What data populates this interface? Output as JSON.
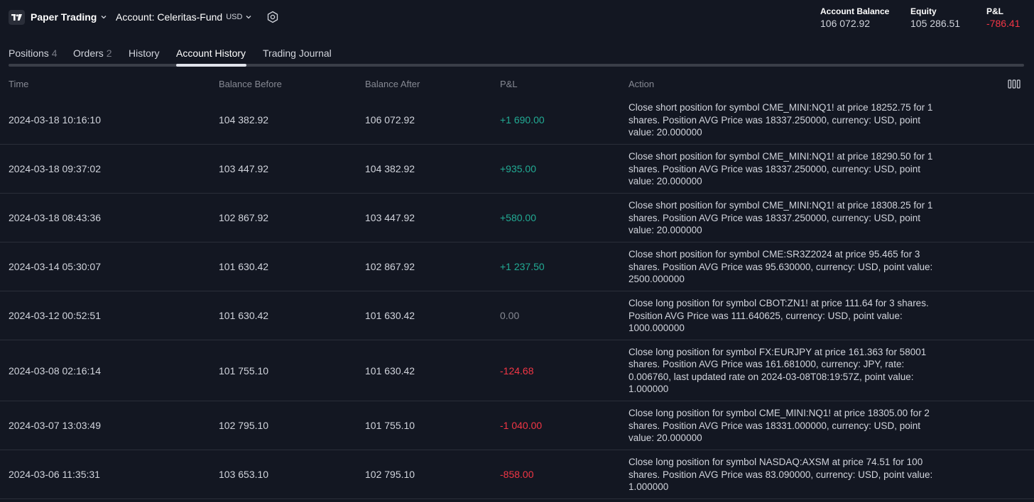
{
  "header": {
    "broker_label": "Paper Trading",
    "account_label": "Account: Celeritas-Fund",
    "account_currency": "USD",
    "stats": {
      "balance_label": "Account Balance",
      "balance_value": "106 072.92",
      "equity_label": "Equity",
      "equity_value": "105 286.51",
      "pnl_label": "P&L",
      "pnl_value": "-786.41"
    }
  },
  "tabs": [
    {
      "label": "Positions",
      "count": "4"
    },
    {
      "label": "Orders",
      "count": "2"
    },
    {
      "label": "History",
      "count": ""
    },
    {
      "label": "Account History",
      "count": ""
    },
    {
      "label": "Trading Journal",
      "count": ""
    }
  ],
  "active_tab": "Account History",
  "table": {
    "columns": [
      "Time",
      "Balance Before",
      "Balance After",
      "P&L",
      "Action"
    ],
    "rows": [
      {
        "time": "2024-03-18 10:16:10",
        "before": "104 382.92",
        "after": "106 072.92",
        "pnl": "+1 690.00",
        "sign": "pos",
        "action": "Close short position for symbol CME_MINI:NQ1! at price 18252.75 for 1 shares. Position AVG Price was 18337.250000, currency: USD, point value: 20.000000"
      },
      {
        "time": "2024-03-18 09:37:02",
        "before": "103 447.92",
        "after": "104 382.92",
        "pnl": "+935.00",
        "sign": "pos",
        "action": "Close short position for symbol CME_MINI:NQ1! at price 18290.50 for 1 shares. Position AVG Price was 18337.250000, currency: USD, point value: 20.000000"
      },
      {
        "time": "2024-03-18 08:43:36",
        "before": "102 867.92",
        "after": "103 447.92",
        "pnl": "+580.00",
        "sign": "pos",
        "action": "Close short position for symbol CME_MINI:NQ1! at price 18308.25 for 1 shares. Position AVG Price was 18337.250000, currency: USD, point value: 20.000000"
      },
      {
        "time": "2024-03-14 05:30:07",
        "before": "101 630.42",
        "after": "102 867.92",
        "pnl": "+1 237.50",
        "sign": "pos",
        "action": "Close short position for symbol CME:SR3Z2024 at price 95.465 for 3 shares. Position AVG Price was 95.630000, currency: USD, point value: 2500.000000"
      },
      {
        "time": "2024-03-12 00:52:51",
        "before": "101 630.42",
        "after": "101 630.42",
        "pnl": "0.00",
        "sign": "zero",
        "action": "Close long position for symbol CBOT:ZN1! at price 111.64 for 3 shares. Position AVG Price was 111.640625, currency: USD, point value: 1000.000000"
      },
      {
        "time": "2024-03-08 02:16:14",
        "before": "101 755.10",
        "after": "101 630.42",
        "pnl": "-124.68",
        "sign": "neg",
        "action": "Close long position for symbol FX:EURJPY at price 161.363 for 58001 shares. Position AVG Price was 161.681000, currency: JPY, rate: 0.006760, last updated rate on 2024-03-08T08:19:57Z, point value: 1.000000"
      },
      {
        "time": "2024-03-07 13:03:49",
        "before": "102 795.10",
        "after": "101 755.10",
        "pnl": "-1 040.00",
        "sign": "neg",
        "action": "Close long position for symbol CME_MINI:NQ1! at price 18305.00 for 2 shares. Position AVG Price was 18331.000000, currency: USD, point value: 20.000000"
      },
      {
        "time": "2024-03-06 11:35:31",
        "before": "103 653.10",
        "after": "102 795.10",
        "pnl": "-858.00",
        "sign": "neg",
        "action": "Close long position for symbol NASDAQ:AXSM at price 74.51 for 100 shares. Position AVG Price was 83.090000, currency: USD, point value: 1.000000"
      }
    ]
  },
  "icons": {
    "logo": "tradingview-logo-icon",
    "broker_dropdown": "chevron-down-icon",
    "account_dropdown": "chevron-down-icon",
    "settings": "gear-icon",
    "columns": "columns-icon"
  },
  "colors": {
    "background": "#131722",
    "positive": "#22ab94",
    "negative": "#f23645",
    "muted": "#868993"
  }
}
